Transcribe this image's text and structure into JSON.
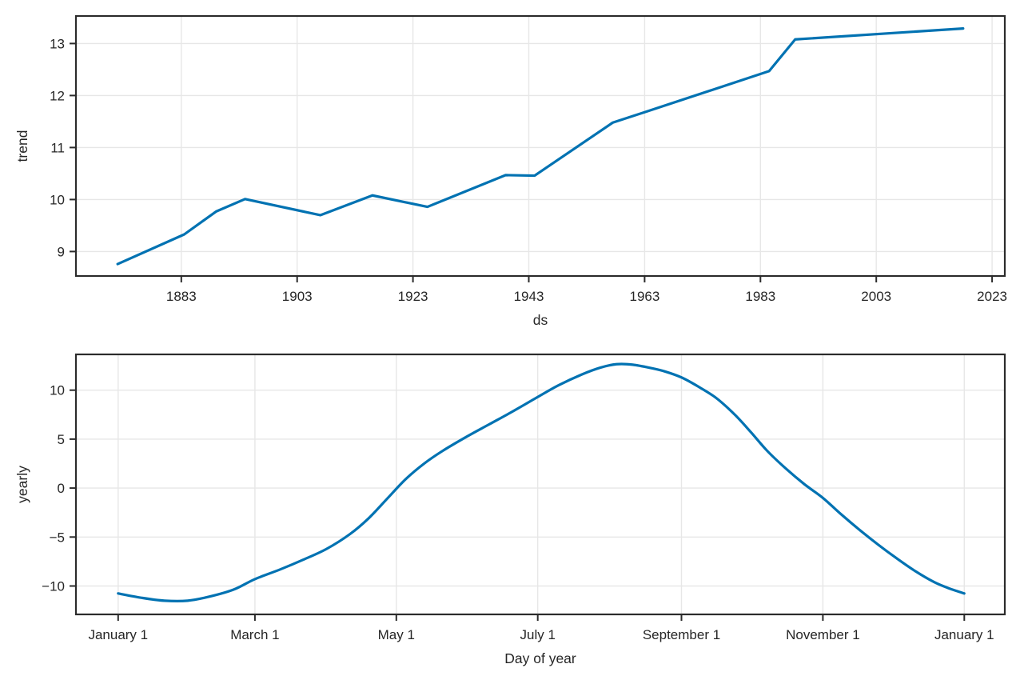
{
  "figure": {
    "kind": "prophet-components-plot",
    "background": "#ffffff",
    "line_color": "#0072B2",
    "spine_color": "#2b2b2b",
    "tick_color": "#2b2b2b",
    "grid_color": "#e7e7e7",
    "text_color": "#262626",
    "tick_font_size": 17,
    "label_font_size": 17.5
  },
  "chart_data": [
    {
      "type": "line",
      "title": "",
      "xlabel": "ds",
      "ylabel": "trend",
      "grid": true,
      "legend": null,
      "xlim": [
        1864.8,
        2025.2
      ],
      "ylim": [
        8.53,
        13.53
      ],
      "xticks": {
        "values": [
          1883,
          1903,
          1923,
          1943,
          1963,
          1983,
          2003,
          2023
        ],
        "labels": [
          "1883",
          "1903",
          "1923",
          "1943",
          "1963",
          "1983",
          "2003",
          "2023"
        ]
      },
      "yticks": {
        "values": [
          9,
          10,
          11,
          12,
          13
        ],
        "labels": [
          "9",
          "10",
          "11",
          "12",
          "13"
        ]
      },
      "series": [
        {
          "name": "trend",
          "smooth": false,
          "points": [
            [
              1872,
              8.76
            ],
            [
              1883.5,
              9.33
            ],
            [
              1889,
              9.77
            ],
            [
              1894,
              10.01
            ],
            [
              1907,
              9.7
            ],
            [
              1916,
              10.08
            ],
            [
              1925.5,
              9.86
            ],
            [
              1939,
              10.47
            ],
            [
              1944,
              10.46
            ],
            [
              1957.5,
              11.48
            ],
            [
              1963,
              11.68
            ],
            [
              1984.5,
              12.47
            ],
            [
              1989,
              13.08
            ],
            [
              2018,
              13.29
            ]
          ]
        }
      ]
    },
    {
      "type": "line",
      "title": "",
      "xlabel": "Day of year",
      "ylabel": "yearly",
      "grid": true,
      "legend": null,
      "xlim": [
        -18.2,
        382.5
      ],
      "ylim": [
        -12.9,
        13.65
      ],
      "xticks": {
        "values": [
          0,
          59,
          120,
          181,
          243,
          304,
          365
        ],
        "labels": [
          "January 1",
          "March 1",
          "May 1",
          "July 1",
          "September 1",
          "November 1",
          "January 1"
        ]
      },
      "yticks": {
        "values": [
          -10,
          -5,
          0,
          5,
          10
        ],
        "labels": [
          "−10",
          "−5",
          "0",
          "5",
          "10"
        ]
      },
      "series": [
        {
          "name": "yearly",
          "smooth": true,
          "points": [
            [
              0,
              -10.76
            ],
            [
              10,
              -11.2
            ],
            [
              20,
              -11.5
            ],
            [
              30,
              -11.5
            ],
            [
              40,
              -11.05
            ],
            [
              50,
              -10.35
            ],
            [
              59,
              -9.3
            ],
            [
              70,
              -8.3
            ],
            [
              80,
              -7.3
            ],
            [
              90,
              -6.2
            ],
            [
              100,
              -4.7
            ],
            [
              108,
              -3.1
            ],
            [
              116,
              -1.1
            ],
            [
              124,
              0.9
            ],
            [
              132,
              2.5
            ],
            [
              140,
              3.8
            ],
            [
              150,
              5.2
            ],
            [
              160,
              6.5
            ],
            [
              170,
              7.8
            ],
            [
              181,
              9.3
            ],
            [
              190,
              10.5
            ],
            [
              200,
              11.6
            ],
            [
              208,
              12.3
            ],
            [
              215,
              12.65
            ],
            [
              222,
              12.6
            ],
            [
              230,
              12.25
            ],
            [
              236,
              11.9
            ],
            [
              243,
              11.3
            ],
            [
              250,
              10.4
            ],
            [
              258,
              9.2
            ],
            [
              266,
              7.5
            ],
            [
              273,
              5.7
            ],
            [
              280,
              3.8
            ],
            [
              288,
              2.0
            ],
            [
              296,
              0.4
            ],
            [
              304,
              -1.0
            ],
            [
              312,
              -2.7
            ],
            [
              320,
              -4.3
            ],
            [
              328,
              -5.8
            ],
            [
              336,
              -7.2
            ],
            [
              344,
              -8.5
            ],
            [
              352,
              -9.6
            ],
            [
              358,
              -10.2
            ],
            [
              365,
              -10.76
            ]
          ]
        }
      ]
    }
  ]
}
